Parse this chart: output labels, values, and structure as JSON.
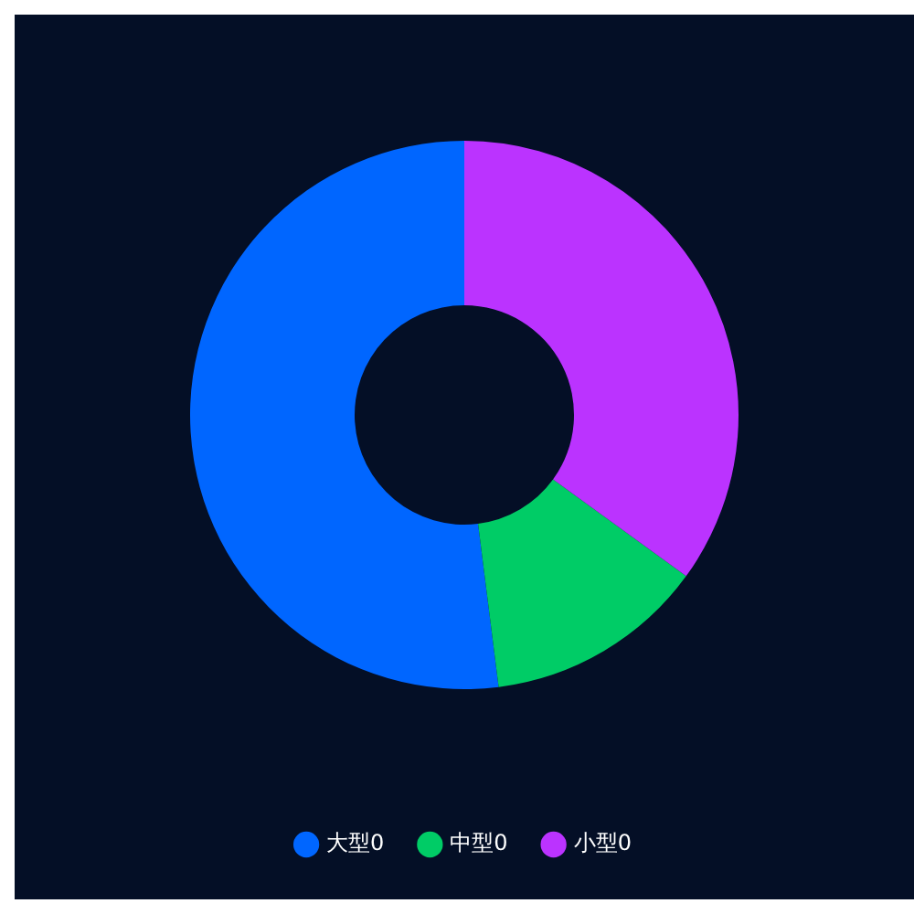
{
  "chart_data": {
    "type": "donut",
    "categories": [
      "大型0",
      "中型0",
      "小型0"
    ],
    "values": [
      52,
      13,
      35
    ],
    "colors": [
      "#0066ff",
      "#00cc66",
      "#bb33ff"
    ],
    "legend": "bottom"
  }
}
